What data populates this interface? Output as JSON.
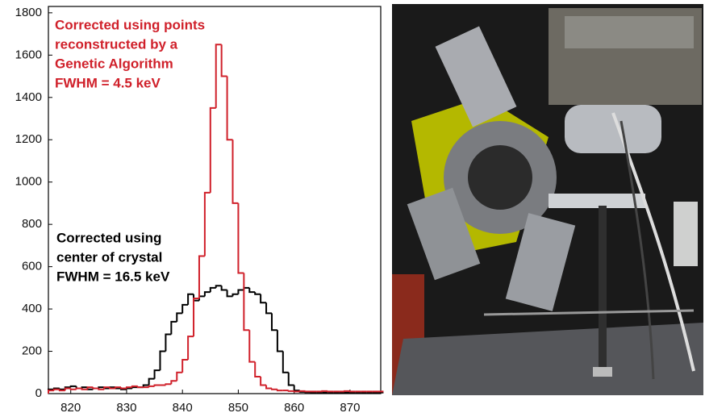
{
  "chart_data": {
    "type": "histogram",
    "bins": [
      816,
      817,
      818,
      819,
      820,
      821,
      822,
      823,
      824,
      825,
      826,
      827,
      828,
      829,
      830,
      831,
      832,
      833,
      834,
      835,
      836,
      837,
      838,
      839,
      840,
      841,
      842,
      843,
      844,
      845,
      846,
      847,
      848,
      849,
      850,
      851,
      852,
      853,
      854,
      855,
      856,
      857,
      858,
      859,
      860,
      861,
      862,
      863,
      864,
      865,
      866,
      867,
      868,
      869,
      870,
      871,
      872,
      873,
      874,
      875,
      876
    ],
    "series": [
      {
        "color": "#000000",
        "values": [
          20,
          25,
          20,
          30,
          35,
          25,
          30,
          20,
          25,
          30,
          25,
          30,
          25,
          20,
          25,
          30,
          30,
          40,
          70,
          110,
          200,
          280,
          340,
          380,
          420,
          470,
          440,
          460,
          480,
          500,
          510,
          490,
          460,
          470,
          490,
          500,
          480,
          470,
          430,
          380,
          300,
          200,
          100,
          40,
          15,
          8,
          6,
          5,
          5,
          5,
          5,
          5,
          5,
          5,
          5,
          5,
          5,
          5,
          5,
          5
        ]
      },
      {
        "color": "#d0202a",
        "values": [
          15,
          20,
          15,
          25,
          20,
          25,
          20,
          30,
          25,
          20,
          30,
          25,
          30,
          25,
          30,
          35,
          30,
          30,
          35,
          40,
          40,
          45,
          60,
          100,
          160,
          270,
          450,
          650,
          950,
          1350,
          1650,
          1500,
          1200,
          900,
          570,
          300,
          150,
          80,
          40,
          25,
          20,
          15,
          15,
          12,
          10,
          12,
          10,
          10,
          10,
          12,
          10,
          10,
          10,
          12,
          10,
          10,
          10,
          10,
          10,
          10
        ]
      }
    ],
    "xlim": [
      816,
      875.5
    ],
    "ylim": [
      0,
      1830
    ],
    "xticks": [
      820,
      830,
      840,
      850,
      860,
      870
    ],
    "yticks": [
      0,
      200,
      400,
      600,
      800,
      1000,
      1200,
      1400,
      1600,
      1800
    ],
    "annotations": [
      {
        "color": "#d0202a",
        "lines": [
          "Corrected using points",
          "reconstructed by a",
          "Genetic Algorithm",
          "FWHM = 4.5 keV"
        ]
      },
      {
        "color": "#000000",
        "lines": [
          "Corrected using",
          "center of crystal",
          "FWHM = 16.5 keV"
        ]
      }
    ]
  }
}
